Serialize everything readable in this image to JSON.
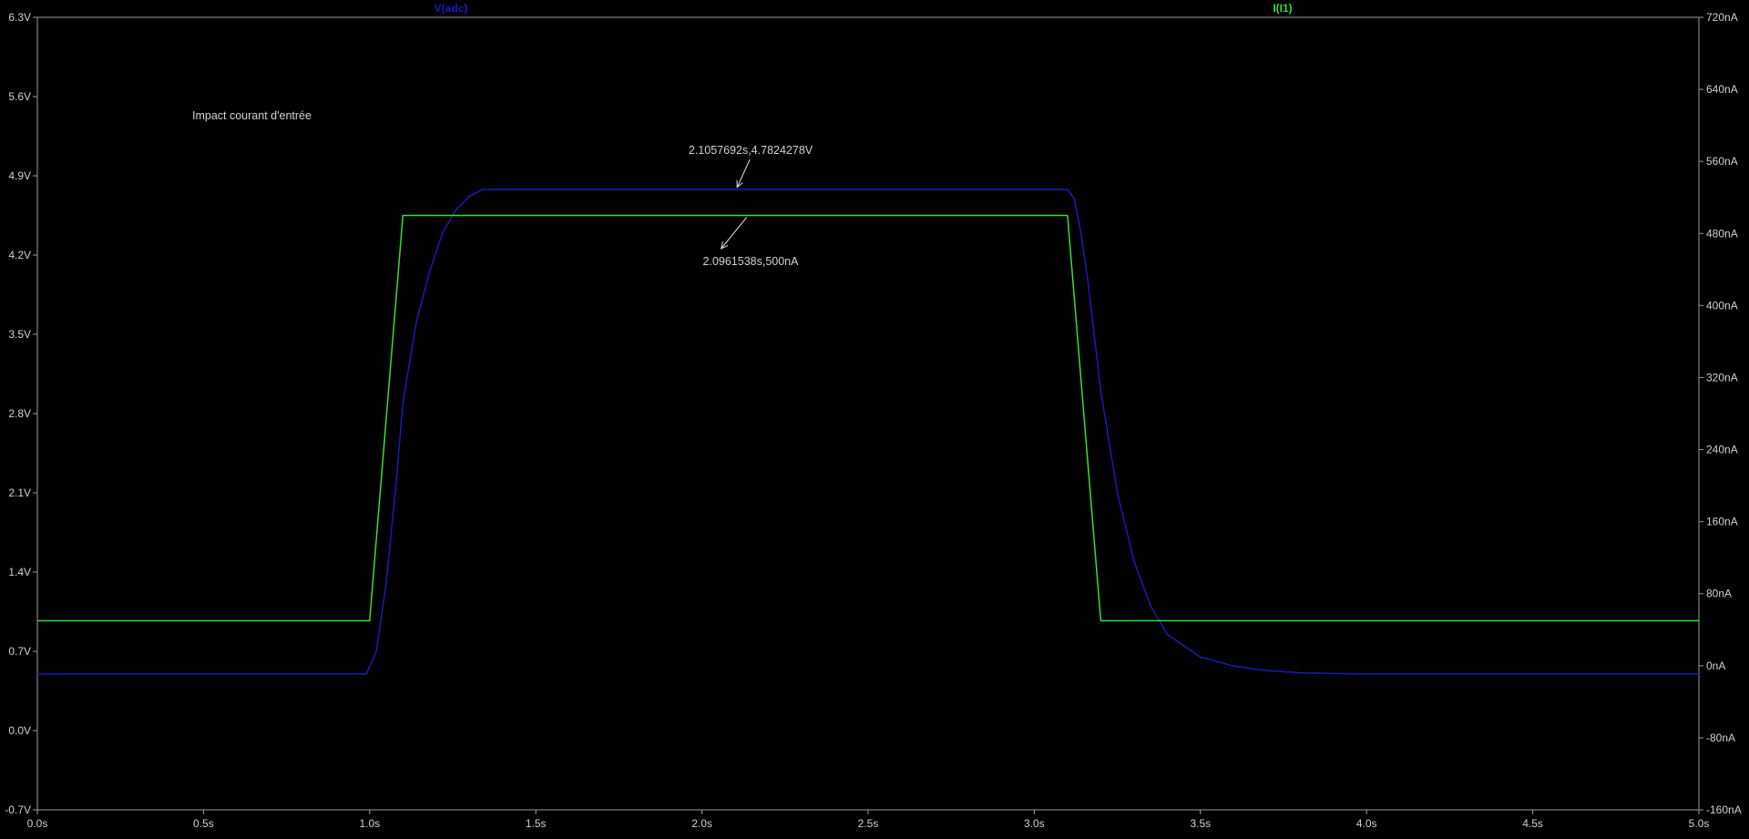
{
  "chart_data": {
    "type": "line",
    "title": "",
    "note": "Impact courant d'entrée",
    "x_axis": {
      "range": [
        0,
        5
      ],
      "ticks": [
        "0.0s",
        "0.5s",
        "1.0s",
        "1.5s",
        "2.0s",
        "2.5s",
        "3.0s",
        "3.5s",
        "4.0s",
        "4.5s",
        "5.0s"
      ],
      "tick_values": [
        0,
        0.5,
        1,
        1.5,
        2,
        2.5,
        3,
        3.5,
        4,
        4.5,
        5
      ],
      "unit": "s"
    },
    "y_axis_left": {
      "range": [
        -0.7,
        6.3
      ],
      "ticks": [
        "-0.7V",
        "0.0V",
        "0.7V",
        "1.4V",
        "2.1V",
        "2.8V",
        "3.5V",
        "4.2V",
        "4.9V",
        "5.6V",
        "6.3V"
      ],
      "tick_values": [
        -0.7,
        0,
        0.7,
        1.4,
        2.1,
        2.8,
        3.5,
        4.2,
        4.9,
        5.6,
        6.3
      ],
      "unit": "V"
    },
    "y_axis_right": {
      "range": [
        -160,
        720
      ],
      "ticks": [
        "-160nA",
        "-80nA",
        "0nA",
        "80nA",
        "160nA",
        "240nA",
        "320nA",
        "400nA",
        "480nA",
        "560nA",
        "640nA",
        "720nA"
      ],
      "tick_values": [
        -160,
        -80,
        0,
        80,
        160,
        240,
        320,
        400,
        480,
        560,
        640,
        720
      ],
      "unit": "nA"
    },
    "grid": false,
    "series": [
      {
        "name": "V(adc)",
        "axis": "left",
        "color": "#1a1ab8",
        "x": [
          0,
          0.5,
          0.99,
          1.02,
          1.05,
          1.08,
          1.1,
          1.14,
          1.18,
          1.22,
          1.26,
          1.3,
          1.34,
          1.36,
          2.0,
          3.1,
          3.12,
          3.14,
          3.16,
          3.2,
          3.25,
          3.3,
          3.35,
          3.4,
          3.5,
          3.6,
          3.7,
          3.8,
          4.0,
          4.5,
          5.0
        ],
        "y": [
          0.5,
          0.5,
          0.5,
          0.7,
          1.3,
          2.2,
          2.9,
          3.6,
          4.05,
          4.4,
          4.6,
          4.72,
          4.78,
          4.78,
          4.78,
          4.78,
          4.7,
          4.4,
          4.0,
          3.0,
          2.1,
          1.5,
          1.1,
          0.85,
          0.65,
          0.57,
          0.53,
          0.51,
          0.5,
          0.5,
          0.5
        ]
      },
      {
        "name": "I(I1)",
        "axis": "right",
        "color": "#33e033",
        "x": [
          0,
          1.0,
          1.1,
          3.1,
          3.2,
          5.0
        ],
        "y": [
          50,
          50,
          500,
          500,
          50,
          50
        ]
      }
    ],
    "annotations": [
      {
        "text": "2.1057692s,4.7824278V",
        "x": 2.1057692,
        "y": 4.7824278,
        "axis": "left"
      },
      {
        "text": "2.0961538s,500nA",
        "x": 2.0961538,
        "y": 500,
        "axis": "right"
      }
    ]
  }
}
